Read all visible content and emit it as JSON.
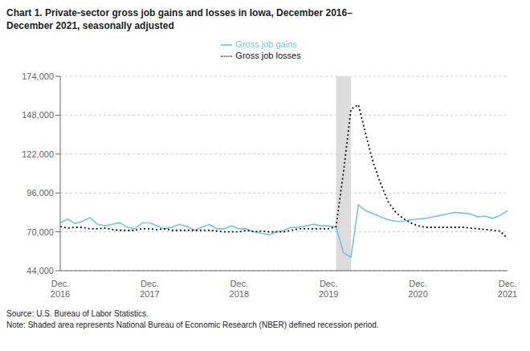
{
  "chart_data": {
    "type": "line",
    "title": "Chart 1. Private-sector gross job gains and losses in Iowa, December 2016–\nDecember 2021, seasonally adjusted",
    "annotations": [
      "Source: U.S. Bureau of Labor Statistics.",
      "Note: Shaded area represents National Bureau of Economic Research (NBER) defined recession period."
    ],
    "categories": [
      "Dec.\n2016",
      null,
      null,
      null,
      null,
      null,
      null,
      null,
      null,
      null,
      null,
      null,
      "Dec.\n2017",
      null,
      null,
      null,
      null,
      null,
      null,
      null,
      null,
      null,
      null,
      null,
      "Dec.\n2018",
      null,
      null,
      null,
      null,
      null,
      null,
      null,
      null,
      null,
      null,
      null,
      "Dec.\n2019",
      null,
      null,
      null,
      null,
      null,
      null,
      null,
      null,
      null,
      null,
      null,
      "Dec.\n2020",
      null,
      null,
      null,
      null,
      null,
      null,
      null,
      null,
      null,
      null,
      null,
      "Dec.\n2021"
    ],
    "series": [
      {
        "name": "Gross job gains",
        "color": "#6EC6E6",
        "line_style": "solid",
        "values": [
          76000,
          78500,
          75500,
          77000,
          79500,
          75000,
          74000,
          75000,
          76000,
          73000,
          72000,
          76000,
          76000,
          74000,
          72000,
          73000,
          75000,
          73500,
          71000,
          73000,
          75000,
          72000,
          72000,
          74000,
          72000,
          72000,
          70000,
          69000,
          68000,
          70000,
          71000,
          73000,
          73000,
          74000,
          75000,
          74000,
          74000,
          73000,
          56000,
          53000,
          88000,
          84000,
          82000,
          80000,
          78000,
          77000,
          77000,
          78000,
          78500,
          79000,
          80000,
          81000,
          82000,
          83000,
          82500,
          82000,
          80000,
          80500,
          79000,
          81000,
          84000
        ]
      },
      {
        "name": "Gross job losses",
        "color": "#111111",
        "line_style": "dotted",
        "values": [
          73500,
          72500,
          73000,
          73000,
          72000,
          72000,
          72500,
          71500,
          71000,
          71000,
          71000,
          72000,
          72000,
          71500,
          72000,
          71000,
          71000,
          71000,
          71000,
          71000,
          71000,
          70500,
          70000,
          70000,
          70000,
          71000,
          70000,
          70500,
          70000,
          70000,
          70000,
          71000,
          72000,
          72000,
          72000,
          72000,
          72000,
          73500,
          110000,
          152000,
          155000,
          135000,
          116000,
          102000,
          90000,
          83000,
          79000,
          76000,
          74000,
          73000,
          73000,
          73000,
          73000,
          73000,
          73000,
          72500,
          72000,
          71500,
          71000,
          70500,
          65500
        ]
      }
    ],
    "shaded": {
      "from": 37,
      "to": 39,
      "color": "#DCDCDC"
    },
    "ylim": [
      44000,
      174000
    ],
    "yticks": [
      {
        "value": 44000,
        "label": "44,000"
      },
      {
        "value": 70000,
        "label": "70,000"
      },
      {
        "value": 96000,
        "label": "96,000"
      },
      {
        "value": 122000,
        "label": "122,000"
      },
      {
        "value": 148000,
        "label": "148,000"
      },
      {
        "value": 174000,
        "label": "174,000"
      }
    ],
    "grid": true,
    "legend": "top"
  }
}
